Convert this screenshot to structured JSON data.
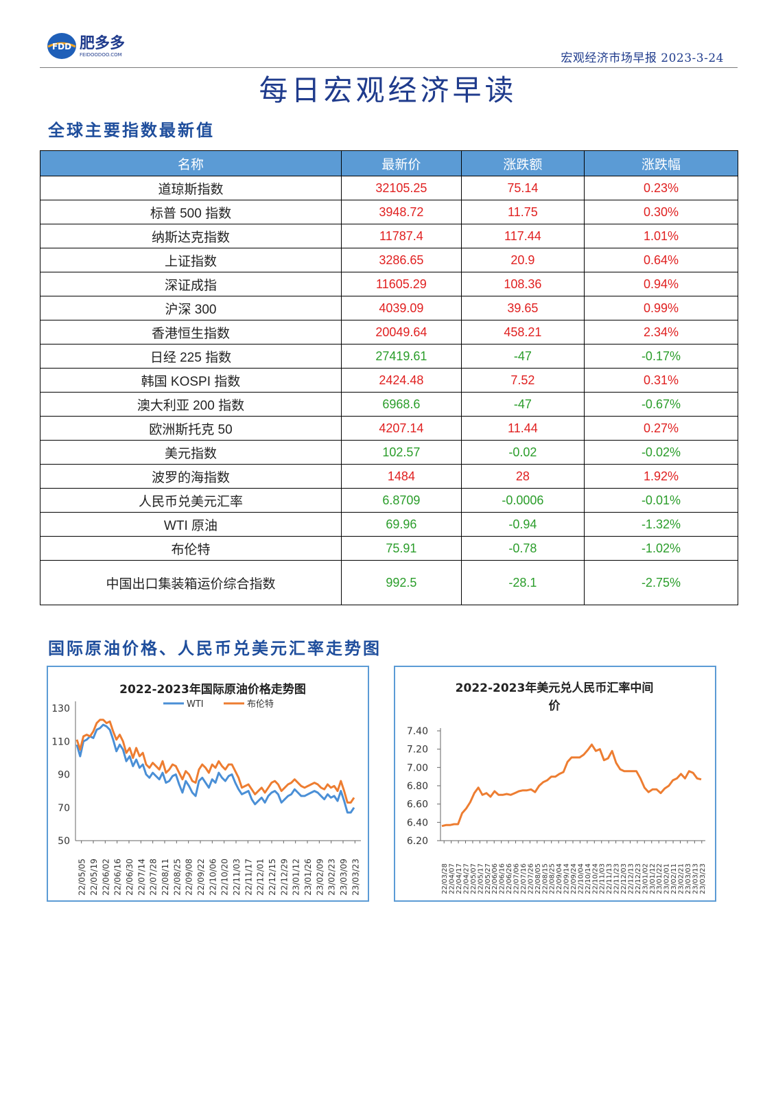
{
  "header": {
    "logo_text": "肥多多",
    "logo_abbr": "FDD",
    "logo_site": "FEIDOODOO.COM",
    "report_line": "宏观经济市场早报 2023-3-24"
  },
  "main_title": "每日宏观经济早读",
  "indices_section_title": "全球主要指数最新值",
  "table": {
    "headers": [
      "名称",
      "最新价",
      "涨跌额",
      "涨跌幅"
    ],
    "rows": [
      {
        "name": "道琼斯指数",
        "price": "32105.25",
        "change": "75.14",
        "pct": "0.23%",
        "dir": "up"
      },
      {
        "name": "标普 500 指数",
        "price": "3948.72",
        "change": "11.75",
        "pct": "0.30%",
        "dir": "up"
      },
      {
        "name": "纳斯达克指数",
        "price": "11787.4",
        "change": "117.44",
        "pct": "1.01%",
        "dir": "up"
      },
      {
        "name": "上证指数",
        "price": "3286.65",
        "change": "20.9",
        "pct": "0.64%",
        "dir": "up"
      },
      {
        "name": "深证成指",
        "price": "11605.29",
        "change": "108.36",
        "pct": "0.94%",
        "dir": "up"
      },
      {
        "name": "沪深 300",
        "price": "4039.09",
        "change": "39.65",
        "pct": "0.99%",
        "dir": "up"
      },
      {
        "name": "香港恒生指数",
        "price": "20049.64",
        "change": "458.21",
        "pct": "2.34%",
        "dir": "up"
      },
      {
        "name": "日经 225 指数",
        "price": "27419.61",
        "change": "-47",
        "pct": "-0.17%",
        "dir": "down"
      },
      {
        "name": "韩国 KOSPI 指数",
        "price": "2424.48",
        "change": "7.52",
        "pct": "0.31%",
        "dir": "up"
      },
      {
        "name": "澳大利亚 200 指数",
        "price": "6968.6",
        "change": "-47",
        "pct": "-0.67%",
        "dir": "down"
      },
      {
        "name": "欧洲斯托克 50",
        "price": "4207.14",
        "change": "11.44",
        "pct": "0.27%",
        "dir": "up"
      },
      {
        "name": "美元指数",
        "price": "102.57",
        "change": "-0.02",
        "pct": "-0.02%",
        "dir": "down"
      },
      {
        "name": "波罗的海指数",
        "price": "1484",
        "change": "28",
        "pct": "1.92%",
        "dir": "up"
      },
      {
        "name": "人民币兑美元汇率",
        "price": "6.8709",
        "change": "-0.0006",
        "pct": "-0.01%",
        "dir": "down"
      },
      {
        "name": "WTI 原油",
        "price": "69.96",
        "change": "-0.94",
        "pct": "-1.32%",
        "dir": "down"
      },
      {
        "name": "布伦特",
        "price": "75.91",
        "change": "-0.78",
        "pct": "-1.02%",
        "dir": "down"
      },
      {
        "name": "中国出口集装箱运价综合指数",
        "price": "992.5",
        "change": "-28.1",
        "pct": "-2.75%",
        "dir": "down"
      }
    ]
  },
  "charts_section_title": "国际原油价格、人民币兑美元汇率走势图",
  "colors": {
    "accent": "#1f4e9c",
    "header_fill": "#5b9bd5",
    "up": "#e02020",
    "down": "#2a9d2a",
    "wti": "#4a8fd6",
    "brent": "#ed7d31"
  },
  "chart_data": [
    {
      "type": "line",
      "title": "2022-2023年国际原油价格走势图",
      "ylim": [
        50,
        130
      ],
      "yticks": [
        50,
        70,
        90,
        110,
        130
      ],
      "x_ticks": [
        "22/05/05",
        "22/05/19",
        "22/06/02",
        "22/06/16",
        "22/06/30",
        "22/07/14",
        "22/07/28",
        "22/08/11",
        "22/08/25",
        "22/09/08",
        "22/09/22",
        "22/10/06",
        "22/10/20",
        "22/11/03",
        "22/11/17",
        "22/12/01",
        "22/12/15",
        "22/12/29",
        "23/01/12",
        "23/01/26",
        "23/02/09",
        "23/02/23",
        "23/03/09",
        "23/03/23"
      ],
      "legend": "top",
      "series": [
        {
          "name": "WTI",
          "color": "#4a8fd6",
          "values": [
            108,
            101,
            110,
            111,
            113,
            112,
            117,
            118,
            120,
            119,
            117,
            111,
            104,
            108,
            105,
            98,
            101,
            95,
            99,
            94,
            96,
            90,
            88,
            91,
            89,
            87,
            91,
            85,
            86,
            89,
            90,
            84,
            79,
            86,
            83,
            79,
            77,
            86,
            88,
            85,
            82,
            87,
            85,
            91,
            88,
            86,
            89,
            90,
            85,
            81,
            78,
            79,
            80,
            75,
            72,
            74,
            76,
            73,
            77,
            79,
            80,
            78,
            73,
            75,
            77,
            78,
            81,
            79,
            77,
            77,
            78,
            79,
            80,
            79,
            77,
            75,
            78,
            76,
            77,
            74,
            80,
            74,
            67,
            67,
            70
          ]
        },
        {
          "name": "布伦特",
          "color": "#ed7d31",
          "values": [
            111,
            105,
            113,
            114,
            113,
            116,
            121,
            123,
            123,
            121,
            122,
            116,
            111,
            114,
            110,
            103,
            106,
            100,
            106,
            101,
            103,
            96,
            94,
            97,
            95,
            93,
            98,
            91,
            93,
            96,
            95,
            91,
            87,
            92,
            90,
            86,
            85,
            93,
            96,
            94,
            91,
            96,
            94,
            98,
            95,
            93,
            96,
            96,
            92,
            88,
            82,
            83,
            84,
            81,
            78,
            80,
            82,
            79,
            82,
            85,
            86,
            84,
            80,
            82,
            84,
            85,
            87,
            85,
            83,
            82,
            83,
            84,
            85,
            84,
            82,
            81,
            84,
            82,
            83,
            80,
            86,
            80,
            73,
            73,
            76
          ]
        }
      ]
    },
    {
      "type": "line",
      "title": "2022-2023年美元兑人民币汇率中间价",
      "ylim": [
        6.2,
        7.4
      ],
      "yticks": [
        "7.40",
        "7.20",
        "7.00",
        "6.80",
        "6.60",
        "6.40",
        "6.20"
      ],
      "x_ticks": [
        "22/03/28",
        "22/04/07",
        "22/04/17",
        "22/04/27",
        "22/05/07",
        "22/05/17",
        "22/05/27",
        "22/06/06",
        "22/06/16",
        "22/06/26",
        "22/07/06",
        "22/07/16",
        "22/07/26",
        "22/08/05",
        "22/08/15",
        "22/08/25",
        "22/09/04",
        "22/09/14",
        "22/09/24",
        "22/10/04",
        "22/10/14",
        "22/10/24",
        "22/11/03",
        "22/11/13",
        "22/11/23",
        "22/12/03",
        "22/12/13",
        "22/12/23",
        "23/01/02",
        "23/01/12",
        "23/01/22",
        "23/02/01",
        "23/02/11",
        "23/02/21",
        "23/03/03",
        "23/03/13",
        "23/03/23"
      ],
      "series": [
        {
          "name": "中间价",
          "color": "#ed7d31",
          "values": [
            6.36,
            6.37,
            6.37,
            6.38,
            6.38,
            6.5,
            6.55,
            6.62,
            6.72,
            6.78,
            6.7,
            6.72,
            6.68,
            6.74,
            6.7,
            6.7,
            6.71,
            6.7,
            6.72,
            6.74,
            6.75,
            6.75,
            6.76,
            6.73,
            6.8,
            6.84,
            6.86,
            6.9,
            6.9,
            6.93,
            6.95,
            7.06,
            7.11,
            7.11,
            7.11,
            7.14,
            7.19,
            7.25,
            7.18,
            7.2,
            7.08,
            7.1,
            7.18,
            7.05,
            6.98,
            6.96,
            6.96,
            6.96,
            6.96,
            6.88,
            6.78,
            6.73,
            6.76,
            6.76,
            6.72,
            6.77,
            6.8,
            6.86,
            6.88,
            6.93,
            6.88,
            6.96,
            6.94,
            6.88,
            6.87
          ]
        }
      ]
    }
  ]
}
